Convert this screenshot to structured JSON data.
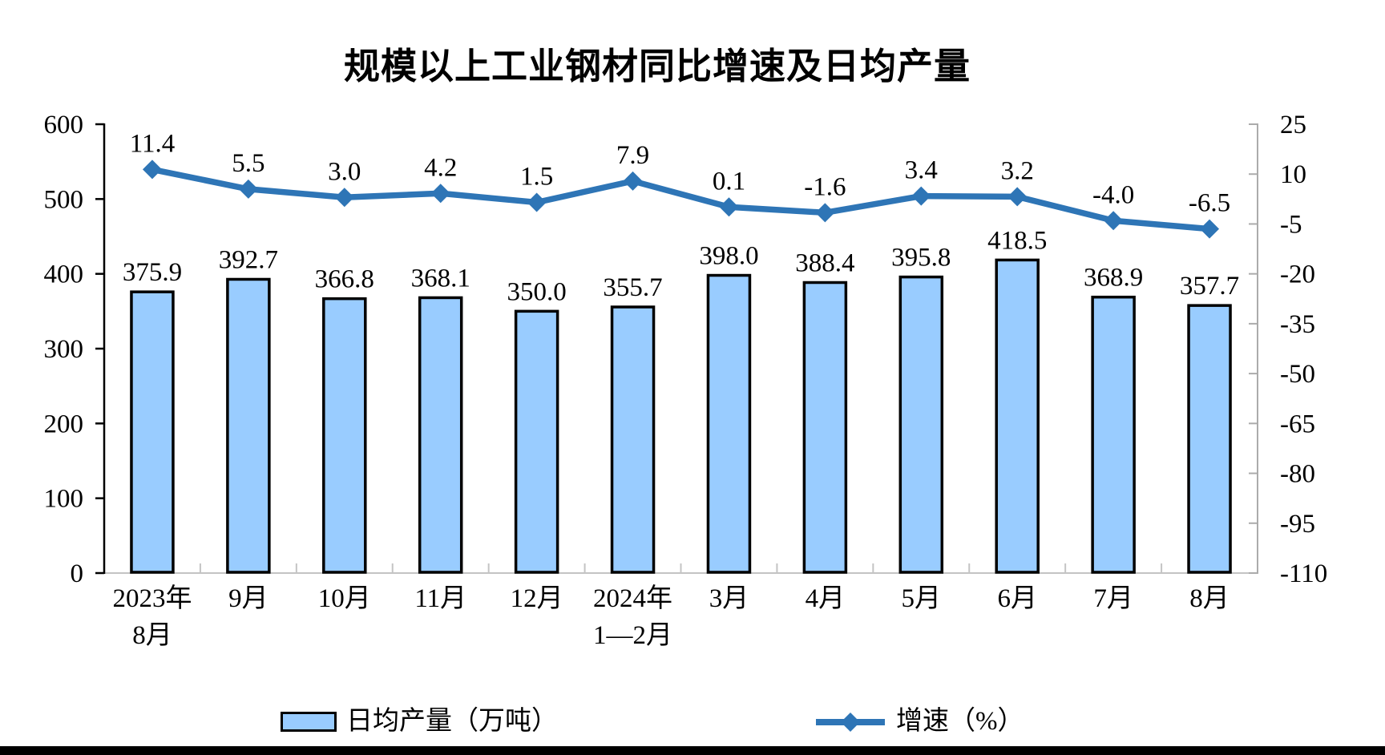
{
  "title": "规模以上工业钢材同比增速及日均产量",
  "chart_data": {
    "type": "combo_bar_line",
    "title": "规模以上工业钢材同比增速及日均产量",
    "categories": [
      "2023年\n8月",
      "9月",
      "10月",
      "11月",
      "12月",
      "2024年\n1—2月",
      "3月",
      "4月",
      "5月",
      "6月",
      "7月",
      "8月"
    ],
    "series": [
      {
        "name": "日均产量（万吨）",
        "type": "bar",
        "axis": "left",
        "values": [
          375.9,
          392.7,
          366.8,
          368.1,
          350.0,
          355.7,
          398.0,
          388.4,
          395.8,
          418.5,
          368.9,
          357.7
        ],
        "color": "#99CCFF",
        "border_color": "#000000"
      },
      {
        "name": "增速（%）",
        "type": "line",
        "axis": "right",
        "values": [
          11.4,
          5.5,
          3.0,
          4.2,
          1.5,
          7.9,
          0.1,
          -1.6,
          3.4,
          3.2,
          -4.0,
          -6.5
        ],
        "color": "#2E75B6",
        "marker": "diamond"
      }
    ],
    "axes": {
      "left": {
        "min": 0,
        "max": 600,
        "step": 100,
        "ticks": [
          600,
          500,
          400,
          300,
          200,
          100,
          0
        ]
      },
      "right": {
        "min": -110,
        "max": 25,
        "step": 15,
        "ticks": [
          25,
          10,
          -5,
          -20,
          -35,
          -50,
          -65,
          -80,
          -95,
          -110
        ]
      }
    },
    "grid": false,
    "data_labels": true,
    "legend_position": "bottom"
  }
}
